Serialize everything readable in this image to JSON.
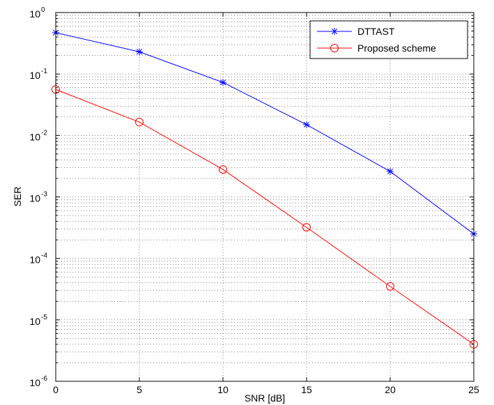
{
  "chart_data": {
    "type": "line",
    "xlabel": "SNR [dB]",
    "ylabel": "SER",
    "xlim": [
      0,
      25
    ],
    "ylim": [
      1e-06,
      1
    ],
    "yscale": "log",
    "grid": true,
    "legend_position": "top-right",
    "x_ticks": [
      "0",
      "5",
      "10",
      "15",
      "20",
      "25"
    ],
    "y_ticks": [
      {
        "base": "10",
        "exp": "0"
      },
      {
        "base": "10",
        "exp": "-1"
      },
      {
        "base": "10",
        "exp": "-2"
      },
      {
        "base": "10",
        "exp": "-3"
      },
      {
        "base": "10",
        "exp": "-4"
      },
      {
        "base": "10",
        "exp": "-5"
      },
      {
        "base": "10",
        "exp": "-6"
      }
    ],
    "x": [
      0,
      5,
      10,
      15,
      20,
      25
    ],
    "series": [
      {
        "name": "DTTAST",
        "color": "#0000ff",
        "marker": "asterisk",
        "values": [
          0.47,
          0.23,
          0.073,
          0.015,
          0.0026,
          0.00025
        ]
      },
      {
        "name": "Proposed scheme",
        "color": "#ff0000",
        "marker": "circle",
        "values": [
          0.056,
          0.0165,
          0.0028,
          0.00032,
          3.5e-05,
          4e-06
        ]
      }
    ]
  }
}
